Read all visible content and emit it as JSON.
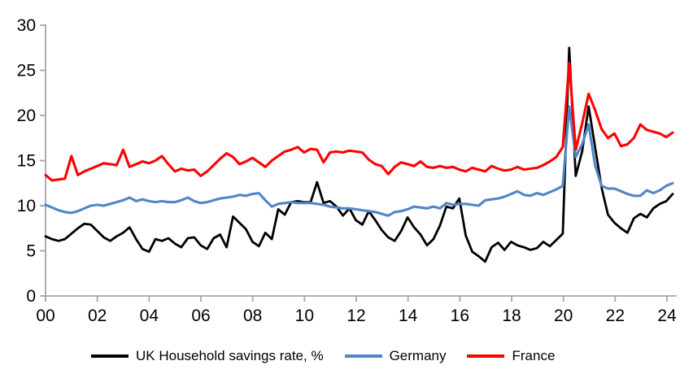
{
  "chart_data": {
    "type": "line",
    "title": "",
    "frequency": "quarterly",
    "x_start": "2000 Q1",
    "x_end": "2024 Q2",
    "grid": false,
    "legend_position": "bottom",
    "x_axis": {
      "tick_labels": [
        "00",
        "02",
        "04",
        "06",
        "08",
        "10",
        "12",
        "14",
        "16",
        "18",
        "20",
        "22",
        "24"
      ]
    },
    "y_axis": {
      "min": 0,
      "max": 30,
      "ticks": [
        0,
        5,
        10,
        15,
        20,
        25,
        30
      ]
    },
    "series": [
      {
        "name": "UK Household savings rate, %",
        "color": "#000000",
        "values": [
          6.6,
          6.3,
          6.1,
          6.3,
          6.9,
          7.5,
          8.0,
          7.9,
          7.2,
          6.5,
          6.1,
          6.6,
          7.0,
          7.6,
          6.3,
          5.2,
          4.9,
          6.3,
          6.1,
          6.4,
          5.8,
          5.4,
          6.4,
          6.5,
          5.6,
          5.2,
          6.4,
          6.8,
          5.4,
          8.8,
          8.1,
          7.4,
          6.0,
          5.5,
          7.0,
          6.3,
          9.6,
          9.0,
          10.4,
          10.5,
          10.4,
          10.4,
          12.6,
          10.3,
          10.5,
          9.9,
          8.9,
          9.7,
          8.4,
          7.9,
          9.4,
          8.4,
          7.3,
          6.5,
          6.1,
          7.2,
          8.7,
          7.6,
          6.8,
          5.6,
          6.3,
          7.8,
          9.9,
          9.7,
          10.8,
          6.7,
          4.9,
          4.4,
          3.8,
          5.4,
          5.9,
          5.1,
          6.0,
          5.6,
          5.4,
          5.1,
          5.3,
          6.0,
          5.5,
          6.2,
          6.9,
          27.5,
          13.3,
          16.0,
          21.0,
          16.5,
          12.0,
          9.0,
          8.1,
          7.5,
          7.0,
          8.6,
          9.1,
          8.7,
          9.7,
          10.2,
          10.5,
          11.3
        ]
      },
      {
        "name": "Germany",
        "color": "#4F86C6",
        "values": [
          10.1,
          9.8,
          9.5,
          9.3,
          9.2,
          9.4,
          9.7,
          10.0,
          10.1,
          10.0,
          10.2,
          10.4,
          10.6,
          10.9,
          10.5,
          10.7,
          10.5,
          10.4,
          10.5,
          10.4,
          10.4,
          10.6,
          10.9,
          10.5,
          10.3,
          10.4,
          10.6,
          10.8,
          10.9,
          11.0,
          11.2,
          11.1,
          11.3,
          11.4,
          10.6,
          9.9,
          10.2,
          10.3,
          10.4,
          10.3,
          10.3,
          10.3,
          10.2,
          10.1,
          9.9,
          9.8,
          9.7,
          9.7,
          9.6,
          9.5,
          9.4,
          9.3,
          9.1,
          8.9,
          9.3,
          9.4,
          9.6,
          9.9,
          9.8,
          9.7,
          9.9,
          9.7,
          10.3,
          10.1,
          10.2,
          10.2,
          10.1,
          10.0,
          10.6,
          10.7,
          10.8,
          11.0,
          11.3,
          11.6,
          11.2,
          11.1,
          11.4,
          11.2,
          11.5,
          11.8,
          12.2,
          21.0,
          15.4,
          16.8,
          19.0,
          14.5,
          12.2,
          11.9,
          11.9,
          11.6,
          11.3,
          11.1,
          11.1,
          11.7,
          11.4,
          11.7,
          12.2,
          12.5
        ]
      },
      {
        "name": "France",
        "color": "#FF0000",
        "values": [
          13.4,
          12.8,
          12.9,
          13.0,
          15.5,
          13.4,
          13.8,
          14.1,
          14.4,
          14.7,
          14.6,
          14.5,
          16.2,
          14.3,
          14.6,
          14.9,
          14.7,
          15.0,
          15.5,
          14.6,
          13.8,
          14.1,
          13.9,
          14.0,
          13.3,
          13.8,
          14.5,
          15.2,
          15.8,
          15.4,
          14.6,
          14.9,
          15.3,
          14.8,
          14.3,
          15.0,
          15.5,
          16.0,
          16.2,
          16.5,
          15.9,
          16.3,
          16.2,
          14.8,
          15.9,
          16.0,
          15.9,
          16.1,
          16.0,
          15.9,
          15.1,
          14.6,
          14.4,
          13.5,
          14.3,
          14.8,
          14.6,
          14.4,
          14.9,
          14.3,
          14.2,
          14.4,
          14.2,
          14.3,
          14.0,
          13.8,
          14.2,
          14.0,
          13.8,
          14.4,
          14.1,
          13.9,
          14.0,
          14.3,
          14.0,
          14.1,
          14.2,
          14.5,
          14.9,
          15.4,
          16.5,
          25.8,
          16.2,
          19.1,
          22.4,
          20.6,
          18.5,
          17.5,
          18.0,
          16.6,
          16.8,
          17.5,
          19.0,
          18.4,
          18.2,
          18.0,
          17.6,
          18.1
        ]
      }
    ]
  },
  "colors": {
    "background": "#FFFFFF",
    "axis": "#A6A6A6",
    "text": "#000000"
  }
}
